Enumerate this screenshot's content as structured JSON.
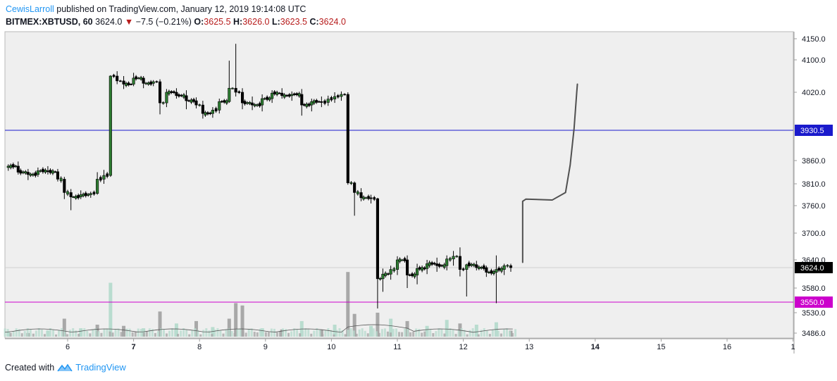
{
  "header": {
    "author": "CewisLarroll",
    "published_text": " published on TradingView.com, January 12, 2019 19:14:08 UTC",
    "symbol": "BITMEX:XBTUSD, 60",
    "last": "3624.0",
    "change_arrow": "▼",
    "change": "−7.5 (−0.21%)",
    "ohlc": [
      {
        "k": "O:",
        "v": "3625.5"
      },
      {
        "k": "H:",
        "v": "3626.0"
      },
      {
        "k": "L:",
        "v": "3623.5"
      },
      {
        "k": "C:",
        "v": "3624.0"
      }
    ]
  },
  "footer": {
    "created_with": "Created with",
    "brand": "TradingView"
  },
  "colors": {
    "background": "#efefef",
    "up": "#26a69a",
    "up_fill": "#2e7d32",
    "down": "#000000",
    "horizontal_line_1": "#1a1acc",
    "horizontal_line_2": "#cc00cc",
    "volume_up": "#b9dccf",
    "volume_down": "#a8a8a8",
    "drawing": "#505050"
  },
  "chart_data": {
    "type": "candlestick",
    "y_ticks": [
      "4150.0",
      "4100.0",
      "4020.0",
      "3860.0",
      "3810.0",
      "3760.0",
      "3700.0",
      "3640.0",
      "3580.0",
      "3530.0",
      "3486.0"
    ],
    "x_ticks": [
      "6",
      "7",
      "8",
      "9",
      "10",
      "11",
      "12",
      "13",
      "14",
      "15",
      "16",
      "1"
    ],
    "ylim": [
      3486,
      4150
    ],
    "horizontal_lines": [
      {
        "price": 3930.5,
        "label": "3930.5"
      },
      {
        "price": 3550.0,
        "label": "3550.0"
      }
    ],
    "last_price_label": "3624.0",
    "last_price": 3624.0,
    "candles": [
      {
        "day": 5.1,
        "o": 3845,
        "h": 3852,
        "l": 3838,
        "c": 3848
      },
      {
        "day": 5.25,
        "o": 3848,
        "h": 3858,
        "l": 3830,
        "c": 3835
      },
      {
        "day": 5.4,
        "o": 3835,
        "h": 3842,
        "l": 3818,
        "c": 3830
      },
      {
        "day": 5.55,
        "o": 3830,
        "h": 3845,
        "l": 3825,
        "c": 3838
      },
      {
        "day": 5.7,
        "o": 3838,
        "h": 3848,
        "l": 3830,
        "c": 3836
      },
      {
        "day": 5.85,
        "o": 3836,
        "h": 3842,
        "l": 3815,
        "c": 3820
      },
      {
        "day": 5.95,
        "o": 3820,
        "h": 3825,
        "l": 3775,
        "c": 3790
      },
      {
        "day": 6.05,
        "o": 3790,
        "h": 3798,
        "l": 3750,
        "c": 3780
      },
      {
        "day": 6.2,
        "o": 3780,
        "h": 3795,
        "l": 3775,
        "c": 3785
      },
      {
        "day": 6.35,
        "o": 3785,
        "h": 3792,
        "l": 3778,
        "c": 3788
      },
      {
        "day": 6.45,
        "o": 3788,
        "h": 3835,
        "l": 3785,
        "c": 3820
      },
      {
        "day": 6.55,
        "o": 3820,
        "h": 3840,
        "l": 3810,
        "c": 3828
      },
      {
        "day": 6.65,
        "o": 3828,
        "h": 4062,
        "l": 3825,
        "c": 4060
      },
      {
        "day": 6.75,
        "o": 4060,
        "h": 4072,
        "l": 4040,
        "c": 4048
      },
      {
        "day": 6.85,
        "o": 4048,
        "h": 4060,
        "l": 4028,
        "c": 4040
      },
      {
        "day": 7.0,
        "o": 4040,
        "h": 4068,
        "l": 4035,
        "c": 4055
      },
      {
        "day": 7.15,
        "o": 4055,
        "h": 4060,
        "l": 4030,
        "c": 4042
      },
      {
        "day": 7.3,
        "o": 4042,
        "h": 4050,
        "l": 4035,
        "c": 4046
      },
      {
        "day": 7.4,
        "o": 4046,
        "h": 4052,
        "l": 3968,
        "c": 3995
      },
      {
        "day": 7.5,
        "o": 3995,
        "h": 4028,
        "l": 3985,
        "c": 4020
      },
      {
        "day": 7.65,
        "o": 4020,
        "h": 4030,
        "l": 4005,
        "c": 4012
      },
      {
        "day": 7.8,
        "o": 4012,
        "h": 4025,
        "l": 3980,
        "c": 4000
      },
      {
        "day": 7.95,
        "o": 4000,
        "h": 4008,
        "l": 3982,
        "c": 3990
      },
      {
        "day": 8.05,
        "o": 3990,
        "h": 4000,
        "l": 3958,
        "c": 3970
      },
      {
        "day": 8.2,
        "o": 3970,
        "h": 3985,
        "l": 3960,
        "c": 3978
      },
      {
        "day": 8.3,
        "o": 3978,
        "h": 4005,
        "l": 3970,
        "c": 3998
      },
      {
        "day": 8.45,
        "o": 3998,
        "h": 4098,
        "l": 3995,
        "c": 4030
      },
      {
        "day": 8.55,
        "o": 4030,
        "h": 4138,
        "l": 4010,
        "c": 4020
      },
      {
        "day": 8.65,
        "o": 4020,
        "h": 4030,
        "l": 3980,
        "c": 3995
      },
      {
        "day": 8.8,
        "o": 3995,
        "h": 4010,
        "l": 3978,
        "c": 3990
      },
      {
        "day": 8.95,
        "o": 3990,
        "h": 4015,
        "l": 3975,
        "c": 4005
      },
      {
        "day": 9.1,
        "o": 4005,
        "h": 4025,
        "l": 3995,
        "c": 4018
      },
      {
        "day": 9.25,
        "o": 4018,
        "h": 4030,
        "l": 4005,
        "c": 4012
      },
      {
        "day": 9.4,
        "o": 4012,
        "h": 4022,
        "l": 4000,
        "c": 4015
      },
      {
        "day": 9.55,
        "o": 4015,
        "h": 4028,
        "l": 3965,
        "c": 3990
      },
      {
        "day": 9.7,
        "o": 3990,
        "h": 4005,
        "l": 3975,
        "c": 3998
      },
      {
        "day": 9.85,
        "o": 3998,
        "h": 4010,
        "l": 3985,
        "c": 3996
      },
      {
        "day": 9.95,
        "o": 3996,
        "h": 4012,
        "l": 3988,
        "c": 4004
      },
      {
        "day": 10.05,
        "o": 4004,
        "h": 4020,
        "l": 3995,
        "c": 4010
      },
      {
        "day": 10.15,
        "o": 4010,
        "h": 4022,
        "l": 4000,
        "c": 4015
      },
      {
        "day": 10.25,
        "o": 4015,
        "h": 4020,
        "l": 3808,
        "c": 3812
      },
      {
        "day": 10.35,
        "o": 3812,
        "h": 3815,
        "l": 3738,
        "c": 3790
      },
      {
        "day": 10.45,
        "o": 3790,
        "h": 3800,
        "l": 3770,
        "c": 3778
      },
      {
        "day": 10.6,
        "o": 3778,
        "h": 3785,
        "l": 3765,
        "c": 3776
      },
      {
        "day": 10.7,
        "o": 3776,
        "h": 3778,
        "l": 3538,
        "c": 3600
      },
      {
        "day": 10.78,
        "o": 3600,
        "h": 3622,
        "l": 3572,
        "c": 3610
      },
      {
        "day": 10.9,
        "o": 3610,
        "h": 3628,
        "l": 3598,
        "c": 3620
      },
      {
        "day": 11.0,
        "o": 3620,
        "h": 3648,
        "l": 3608,
        "c": 3640
      },
      {
        "day": 11.15,
        "o": 3640,
        "h": 3650,
        "l": 3580,
        "c": 3608
      },
      {
        "day": 11.3,
        "o": 3608,
        "h": 3632,
        "l": 3588,
        "c": 3622
      },
      {
        "day": 11.45,
        "o": 3622,
        "h": 3640,
        "l": 3610,
        "c": 3632
      },
      {
        "day": 11.6,
        "o": 3632,
        "h": 3645,
        "l": 3615,
        "c": 3628
      },
      {
        "day": 11.75,
        "o": 3628,
        "h": 3650,
        "l": 3618,
        "c": 3642
      },
      {
        "day": 11.85,
        "o": 3642,
        "h": 3660,
        "l": 3628,
        "c": 3648
      },
      {
        "day": 11.95,
        "o": 3648,
        "h": 3668,
        "l": 3605,
        "c": 3620
      },
      {
        "day": 12.05,
        "o": 3620,
        "h": 3632,
        "l": 3562,
        "c": 3630
      },
      {
        "day": 12.2,
        "o": 3630,
        "h": 3638,
        "l": 3618,
        "c": 3624
      },
      {
        "day": 12.35,
        "o": 3624,
        "h": 3628,
        "l": 3604,
        "c": 3614
      },
      {
        "day": 12.5,
        "o": 3614,
        "h": 3650,
        "l": 3548,
        "c": 3620
      },
      {
        "day": 12.62,
        "o": 3620,
        "h": 3632,
        "l": 3608,
        "c": 3628
      },
      {
        "day": 12.72,
        "o": 3628,
        "h": 3632,
        "l": 3615,
        "c": 3624
      }
    ],
    "volume": [
      {
        "day": 5.1,
        "v": 8,
        "up": true
      },
      {
        "day": 5.4,
        "v": 6,
        "up": false
      },
      {
        "day": 5.7,
        "v": 10,
        "up": true
      },
      {
        "day": 5.95,
        "v": 30,
        "up": false
      },
      {
        "day": 6.2,
        "v": 14,
        "up": true
      },
      {
        "day": 6.45,
        "v": 20,
        "up": false
      },
      {
        "day": 6.65,
        "v": 90,
        "up": true
      },
      {
        "day": 6.85,
        "v": 18,
        "up": false
      },
      {
        "day": 7.15,
        "v": 14,
        "up": true
      },
      {
        "day": 7.4,
        "v": 42,
        "up": false
      },
      {
        "day": 7.65,
        "v": 22,
        "up": true
      },
      {
        "day": 7.95,
        "v": 26,
        "up": false
      },
      {
        "day": 8.2,
        "v": 16,
        "up": true
      },
      {
        "day": 8.45,
        "v": 30,
        "up": false
      },
      {
        "day": 8.55,
        "v": 56,
        "up": false
      },
      {
        "day": 8.65,
        "v": 52,
        "up": false
      },
      {
        "day": 8.95,
        "v": 14,
        "up": true
      },
      {
        "day": 9.25,
        "v": 12,
        "up": false
      },
      {
        "day": 9.55,
        "v": 26,
        "up": true
      },
      {
        "day": 9.85,
        "v": 12,
        "up": false
      },
      {
        "day": 10.05,
        "v": 20,
        "up": true
      },
      {
        "day": 10.25,
        "v": 108,
        "up": false
      },
      {
        "day": 10.35,
        "v": 38,
        "up": false
      },
      {
        "day": 10.6,
        "v": 18,
        "up": true
      },
      {
        "day": 10.7,
        "v": 40,
        "up": false
      },
      {
        "day": 10.9,
        "v": 30,
        "up": true
      },
      {
        "day": 11.15,
        "v": 26,
        "up": false
      },
      {
        "day": 11.45,
        "v": 18,
        "up": true
      },
      {
        "day": 11.75,
        "v": 28,
        "up": true
      },
      {
        "day": 11.95,
        "v": 22,
        "up": false
      },
      {
        "day": 12.2,
        "v": 20,
        "up": true
      },
      {
        "day": 12.5,
        "v": 24,
        "up": true
      },
      {
        "day": 12.72,
        "v": 10,
        "up": false
      }
    ],
    "drawing_path": [
      [
        12.9,
        3635
      ],
      [
        12.9,
        3770
      ],
      [
        12.95,
        3775
      ],
      [
        13.35,
        3773
      ],
      [
        13.55,
        3790
      ],
      [
        13.62,
        3850
      ],
      [
        13.68,
        3935
      ],
      [
        13.72,
        4020
      ],
      [
        13.73,
        4040
      ]
    ]
  }
}
